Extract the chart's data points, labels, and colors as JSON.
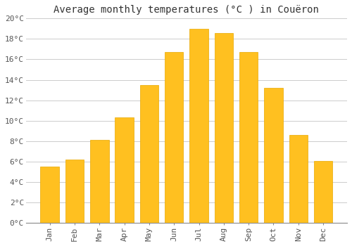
{
  "title": "Average monthly temperatures (°C ) in Couëron",
  "months": [
    "Jan",
    "Feb",
    "Mar",
    "Apr",
    "May",
    "Jun",
    "Jul",
    "Aug",
    "Sep",
    "Oct",
    "Nov",
    "Dec"
  ],
  "values": [
    5.5,
    6.2,
    8.1,
    10.3,
    13.5,
    16.7,
    19.0,
    18.6,
    16.7,
    13.2,
    8.6,
    6.1
  ],
  "bar_color": "#FFC020",
  "bar_edge_color": "#E8A800",
  "background_color": "#FFFFFF",
  "grid_color": "#CCCCCC",
  "ylim": [
    0,
    20
  ],
  "yticks": [
    0,
    2,
    4,
    6,
    8,
    10,
    12,
    14,
    16,
    18,
    20
  ],
  "ytick_labels": [
    "0°C",
    "2°C",
    "4°C",
    "6°C",
    "8°C",
    "10°C",
    "12°C",
    "14°C",
    "16°C",
    "18°C",
    "20°C"
  ],
  "title_fontsize": 10,
  "tick_fontsize": 8,
  "tick_color": "#555555",
  "spine_color": "#888888"
}
